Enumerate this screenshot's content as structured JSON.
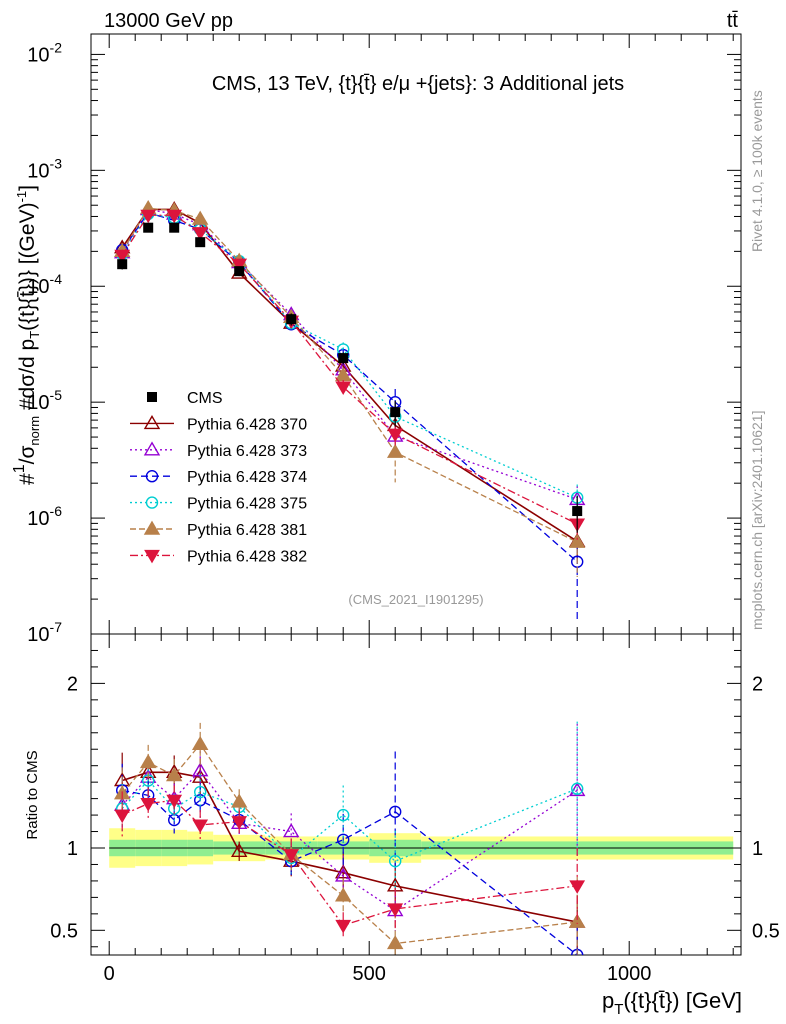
{
  "header": {
    "left": "13000 GeV pp",
    "right": "tt̄"
  },
  "side_labels": {
    "rivet": "Rivet 4.1.0, ≥ 100k events",
    "mcplots": "mcplots.cern.ch [arXiv:2401.10621]"
  },
  "colors": {
    "CMS": "#000000",
    "p370": "#8b0000",
    "p373": "#9400d3",
    "p374": "#0000dd",
    "p375": "#00ced1",
    "p381": "#b8804a",
    "p382": "#dc143c",
    "band_inner": "#90ee90",
    "band_outer": "#ffff88"
  },
  "chart_data": {
    "type": "line",
    "title": "CMS, 13 TeV, {t}{t̄} e/μ +{jets}: 3 Additional jets",
    "analysis_tag": "(CMS_2021_I1901295)",
    "xlabel": "p_T({t}{t̄}) [GeV]",
    "ylabel": "#1/σ_norm #dσ / d p_T({t}{t̄})} [(GeV)^-1]",
    "ratio_ylabel": "Ratio to CMS",
    "xlim": [
      -35,
      1215
    ],
    "ylim": [
      1e-07,
      0.015
    ],
    "yscale": "log",
    "ratio_ylim": [
      0.35,
      2.3
    ],
    "x_ticks": [
      0,
      500,
      1000
    ],
    "y_ticks": [
      "10^-7",
      "10^-6",
      "10^-5",
      "10^-4",
      "10^-3",
      "10^-2"
    ],
    "ratio_ticks": [
      0.5,
      1,
      2
    ],
    "bins": [
      [
        0,
        50
      ],
      [
        50,
        100
      ],
      [
        100,
        150
      ],
      [
        150,
        200
      ],
      [
        200,
        300
      ],
      [
        300,
        400
      ],
      [
        400,
        500
      ],
      [
        500,
        600
      ],
      [
        600,
        1200
      ]
    ],
    "x": [
      25,
      75,
      125,
      175,
      250,
      350,
      450,
      550,
      900
    ],
    "data": {
      "name": "CMS",
      "values": [
        0.000155,
        0.00032,
        0.00032,
        0.00024,
        0.000135,
        5.2e-05,
        2.4e-05,
        8.2e-06,
        1.15e-06
      ],
      "errors": [
        0.1,
        0.07,
        0.07,
        0.07,
        0.06,
        0.12,
        0.12,
        0.25,
        0.35
      ]
    },
    "band": {
      "inner": [
        0.05,
        0.05,
        0.05,
        0.05,
        0.04,
        0.04,
        0.04,
        0.05,
        0.04
      ],
      "outer": [
        0.12,
        0.11,
        0.11,
        0.1,
        0.08,
        0.07,
        0.07,
        0.09,
        0.07
      ]
    },
    "series": [
      {
        "name": "Pythia 6.428 370",
        "marker": "triangle-up-open",
        "dash": "",
        "values": [
          0.000215,
          0.00046,
          0.00046,
          0.00035,
          0.00013,
          4.8e-05,
          2.05e-05,
          6.3e-06,
          6.3e-07
        ],
        "ratio": [
          1.41,
          1.46,
          1.46,
          1.43,
          0.98,
          0.92,
          0.85,
          0.77,
          0.55
        ],
        "rel_err": [
          0.12,
          0.07,
          0.07,
          0.08,
          0.06,
          0.1,
          0.15,
          0.2,
          0.3
        ]
      },
      {
        "name": "Pythia 6.428 373",
        "marker": "triangle-up-open",
        "dash": "2 3",
        "values": [
          0.000195,
          0.00046,
          0.00042,
          0.00034,
          0.00016,
          5.7e-05,
          1.9e-05,
          5.1e-06,
          1.45e-06
        ],
        "ratio": [
          1.26,
          1.43,
          1.3,
          1.47,
          1.15,
          1.1,
          0.83,
          0.62,
          1.35
        ],
        "rel_err": [
          0.12,
          0.07,
          0.07,
          0.08,
          0.06,
          0.1,
          0.15,
          0.2,
          0.3
        ]
      },
      {
        "name": "Pythia 6.428 374",
        "marker": "circle-open",
        "dash": "7 4",
        "values": [
          0.000205,
          0.00043,
          0.00037,
          0.00031,
          0.00016,
          4.7e-05,
          2.55e-05,
          1e-05,
          4.2e-07
        ],
        "ratio": [
          1.35,
          1.32,
          1.17,
          1.29,
          1.17,
          0.92,
          1.05,
          1.22,
          0.35
        ],
        "rel_err": [
          0.12,
          0.07,
          0.07,
          0.08,
          0.06,
          0.1,
          0.15,
          0.3,
          0.7
        ]
      },
      {
        "name": "Pythia 6.428 375",
        "marker": "circle-open",
        "dash": "2 3",
        "values": [
          0.00019,
          0.00042,
          0.00039,
          0.00031,
          0.000165,
          4.8e-05,
          2.85e-05,
          7.5e-06,
          1.5e-06
        ],
        "ratio": [
          1.24,
          1.41,
          1.24,
          1.34,
          1.25,
          0.94,
          1.2,
          0.92,
          1.36
        ],
        "rel_err": [
          0.12,
          0.07,
          0.07,
          0.08,
          0.06,
          0.1,
          0.15,
          0.2,
          0.3
        ]
      },
      {
        "name": "Pythia 6.428 381",
        "marker": "triangle-up-filled",
        "dash": "6 3",
        "values": [
          0.0002,
          0.00047,
          0.00045,
          0.00038,
          0.000165,
          5.4e-05,
          1.7e-05,
          3.7e-06,
          6.2e-07
        ],
        "ratio": [
          1.33,
          1.52,
          1.44,
          1.63,
          1.28,
          0.96,
          0.71,
          0.42,
          0.55
        ],
        "rel_err": [
          0.12,
          0.07,
          0.07,
          0.08,
          0.06,
          0.1,
          0.15,
          0.45,
          0.5
        ]
      },
      {
        "name": "Pythia 6.428 382",
        "marker": "triangle-down-filled",
        "dash": "8 3 2 3",
        "values": [
          0.000185,
          0.00041,
          0.00041,
          0.00029,
          0.000155,
          5e-05,
          1.35e-05,
          5.3e-06,
          8.9e-07
        ],
        "ratio": [
          1.2,
          1.27,
          1.29,
          1.14,
          1.16,
          0.96,
          0.53,
          0.63,
          0.77
        ],
        "rel_err": [
          0.12,
          0.07,
          0.07,
          0.08,
          0.06,
          0.1,
          0.15,
          0.2,
          0.3
        ]
      }
    ]
  }
}
